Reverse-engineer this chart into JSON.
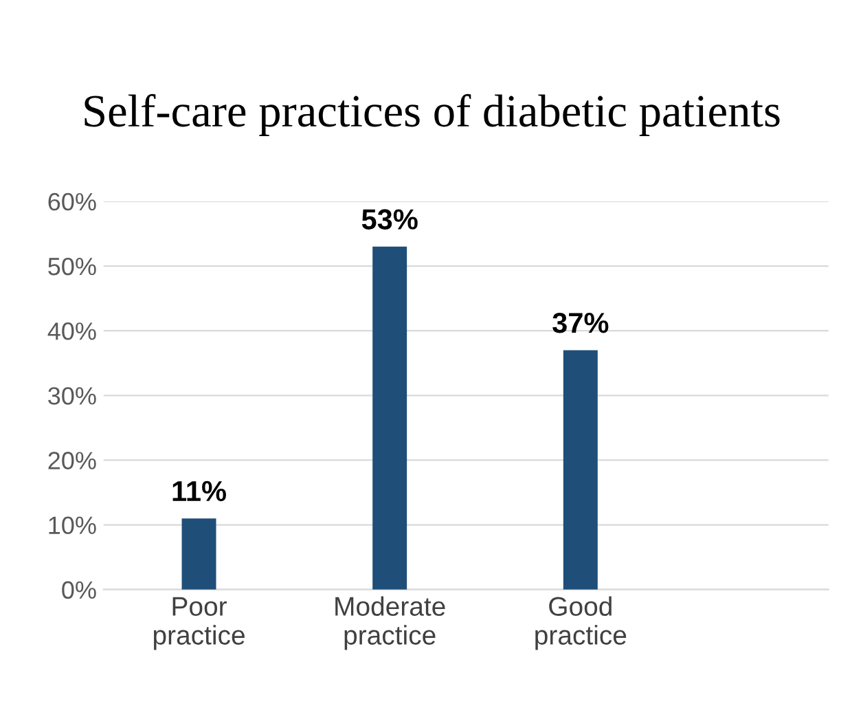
{
  "chart_data": {
    "type": "bar",
    "title": "Self-care practices of diabetic patients",
    "categories": [
      "Poor\npractice",
      "Moderate\npractice",
      "Good\npractice"
    ],
    "values": [
      11,
      53,
      37
    ],
    "color": "#1f4e79",
    "value_labels": [
      "11%",
      "53%",
      "37%"
    ],
    "ylim": [
      0,
      60
    ],
    "yticks": [
      {
        "value": 0,
        "label": "0%"
      },
      {
        "value": 10,
        "label": "10%"
      },
      {
        "value": 20,
        "label": "20%"
      },
      {
        "value": 30,
        "label": "30%"
      },
      {
        "value": 40,
        "label": "40%"
      },
      {
        "value": 50,
        "label": "50%"
      },
      {
        "value": 60,
        "label": "60%"
      }
    ],
    "grid": "y",
    "legend": false
  }
}
